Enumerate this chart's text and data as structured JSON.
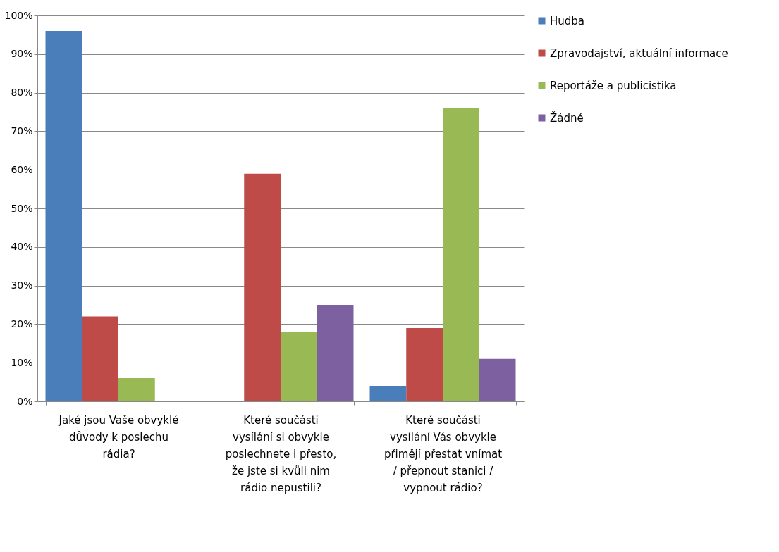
{
  "chart_data": {
    "type": "bar",
    "categories": [
      "Jaké jsou Vaše obvyklé důvody k poslechu rádia?",
      "Které součásti vysílání si obvykle poslechnete i přesto, že jste si kvůli nim rádio nepustili?",
      "Které součásti vysílání Vás obvykle přimějí přestat vnímat / přepnout stanici / vypnout rádio?"
    ],
    "series": [
      {
        "name": "Hudba",
        "color": "#4a7ebb",
        "values": [
          96,
          0,
          4
        ]
      },
      {
        "name": "Zpravodajství, aktuální informace",
        "color": "#be4b48",
        "values": [
          22,
          59,
          19
        ]
      },
      {
        "name": "Reportáže a publicistika",
        "color": "#98b954",
        "values": [
          6,
          18,
          76
        ]
      },
      {
        "name": "Žádné",
        "color": "#7d60a0",
        "values": [
          0,
          25,
          11
        ]
      }
    ],
    "ylim": [
      0,
      100
    ],
    "yticks": [
      {
        "value": 0,
        "label": "0%"
      },
      {
        "value": 10,
        "label": "10%"
      },
      {
        "value": 20,
        "label": "20%"
      },
      {
        "value": 30,
        "label": "30%"
      },
      {
        "value": 40,
        "label": "40%"
      },
      {
        "value": 50,
        "label": "50%"
      },
      {
        "value": 60,
        "label": "60%"
      },
      {
        "value": 70,
        "label": "70%"
      },
      {
        "value": 80,
        "label": "80%"
      },
      {
        "value": 90,
        "label": "90%"
      },
      {
        "value": 100,
        "label": "100%"
      }
    ],
    "grid": "y",
    "legend": "right"
  }
}
